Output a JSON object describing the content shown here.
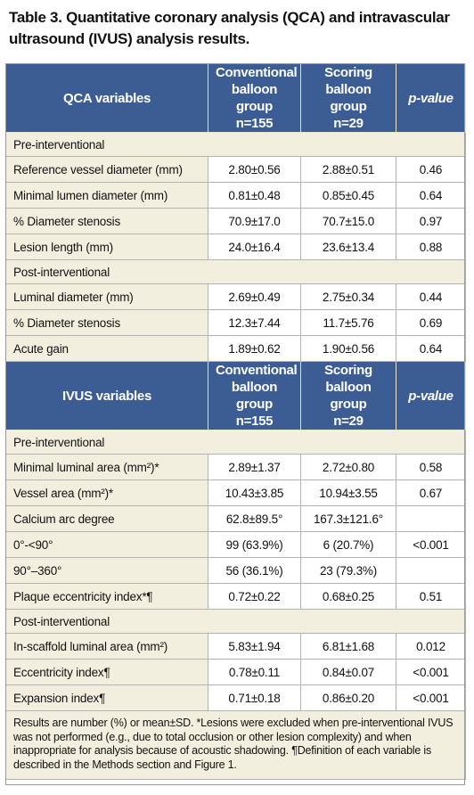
{
  "caption": "Table 3. Quantitative coronary analysis (QCA) and intravascular ultrasound (IVUS) analysis results.",
  "qca": {
    "header": {
      "variables": "QCA variables",
      "col1": [
        "Conventional",
        "balloon group",
        "n=155"
      ],
      "col2": [
        "Scoring",
        "balloon group",
        "n=29"
      ],
      "pvalue": "p-value"
    },
    "sections": [
      {
        "title": "Pre-interventional",
        "rows": [
          {
            "label": "Reference vessel diameter (mm)",
            "c1": "2.80±0.56",
            "c2": "2.88±0.51",
            "p": "0.46"
          },
          {
            "label": "Minimal lumen diameter (mm)",
            "c1": "0.81±0.48",
            "c2": "0.85±0.45",
            "p": "0.64"
          },
          {
            "label": "% Diameter stenosis",
            "c1": "70.9±17.0",
            "c2": "70.7±15.0",
            "p": "0.97"
          },
          {
            "label": "Lesion length (mm)",
            "c1": "24.0±16.4",
            "c2": "23.6±13.4",
            "p": "0.88"
          }
        ]
      },
      {
        "title": "Post-interventional",
        "rows": [
          {
            "label": "Luminal diameter (mm)",
            "c1": "2.69±0.49",
            "c2": "2.75±0.34",
            "p": "0.44"
          },
          {
            "label": "% Diameter stenosis",
            "c1": "12.3±7.44",
            "c2": "11.7±5.76",
            "p": "0.69"
          },
          {
            "label": "Acute gain",
            "c1": "1.89±0.62",
            "c2": "1.90±0.56",
            "p": "0.64"
          }
        ]
      }
    ]
  },
  "ivus": {
    "header": {
      "variables": "IVUS variables",
      "col1": [
        "Conventional",
        "balloon group",
        "n=155"
      ],
      "col2": [
        "Scoring",
        "balloon group",
        "n=29"
      ],
      "pvalue": "p-value"
    },
    "sections": [
      {
        "title": "Pre-interventional",
        "rows": [
          {
            "label": "Minimal luminal area (mm²)*",
            "c1": "2.89±1.37",
            "c2": "2.72±0.80",
            "p": "0.58"
          },
          {
            "label": "Vessel area (mm²)*",
            "c1": "10.43±3.85",
            "c2": "10.94±3.55",
            "p": "0.67"
          },
          {
            "label": "Calcium arc degree",
            "c1": "62.8±89.5°",
            "c2": "167.3±121.6°",
            "p": ""
          },
          {
            "label": "0°-<90°",
            "c1": "99 (63.9%)",
            "c2": "6 (20.7%)",
            "p": "<0.001"
          },
          {
            "label": "90°–360°",
            "c1": "56 (36.1%)",
            "c2": "23 (79.3%)",
            "p": ""
          },
          {
            "label": "Plaque eccentricity index*¶",
            "c1": "0.72±0.22",
            "c2": "0.68±0.25",
            "p": "0.51"
          }
        ]
      },
      {
        "title": "Post-interventional",
        "rows": [
          {
            "label": "In-scaffold luminal area (mm²)",
            "c1": "5.83±1.94",
            "c2": "6.81±1.68",
            "p": "0.012"
          },
          {
            "label": "Eccentricity index¶",
            "c1": "0.78±0.11",
            "c2": "0.84±0.07",
            "p": "<0.001"
          },
          {
            "label": "Expansion index¶",
            "c1": "0.71±0.18",
            "c2": "0.86±0.20",
            "p": "<0.001"
          }
        ]
      }
    ]
  },
  "footnote": "Results are number (%) or mean±SD. *Lesions were excluded when pre-interventional IVUS was not performed (e.g., due to total occlusion or other lesion complexity) and when inappropriate for analysis because of acoustic shadowing. ¶Definition of each variable is described in the Methods section and Figure 1."
}
